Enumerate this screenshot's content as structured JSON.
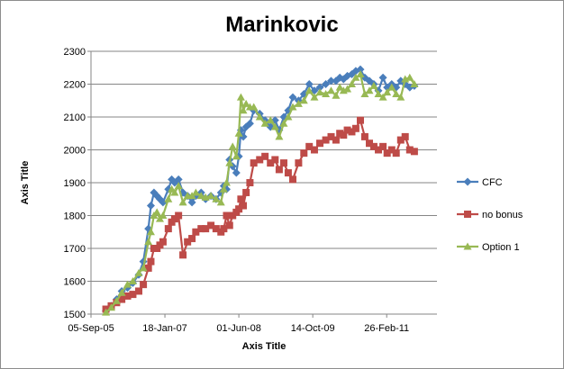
{
  "chart_data": {
    "type": "line",
    "title": "Marinkovic",
    "xlabel": "Axis Title",
    "ylabel": "Axis Title",
    "x_ticks": [
      "05-Sep-05",
      "18-Jan-07",
      "01-Jun-08",
      "14-Oct-09",
      "26-Feb-11"
    ],
    "xlim": [
      "2005-09-05",
      "2012-02-01"
    ],
    "ylim": [
      1500,
      2300
    ],
    "y_ticks": [
      1500,
      1600,
      1700,
      1800,
      1900,
      2000,
      2100,
      2200,
      2300
    ],
    "grid": "horizontal",
    "legend_position": "right",
    "series": [
      {
        "name": "CFC",
        "color": "#4A7EBB",
        "marker": "diamond",
        "x": [
          "2005-12-15",
          "2006-01-20",
          "2006-02-25",
          "2006-04-01",
          "2006-05-10",
          "2006-06-15",
          "2006-07-25",
          "2006-08-25",
          "2006-09-28",
          "2006-10-15",
          "2006-11-05",
          "2006-11-25",
          "2006-12-15",
          "2007-01-05",
          "2007-02-10",
          "2007-03-05",
          "2007-03-25",
          "2007-04-20",
          "2007-05-20",
          "2007-06-20",
          "2007-07-20",
          "2007-08-15",
          "2007-09-20",
          "2007-10-20",
          "2007-11-25",
          "2007-12-30",
          "2008-02-01",
          "2008-02-20",
          "2008-03-10",
          "2008-03-30",
          "2008-04-20",
          "2008-05-15",
          "2008-06-01",
          "2008-06-15",
          "2008-07-01",
          "2008-07-20",
          "2008-08-15",
          "2008-09-10",
          "2008-10-20",
          "2008-11-25",
          "2009-01-01",
          "2009-02-01",
          "2009-03-01",
          "2009-04-01",
          "2009-05-01",
          "2009-06-01",
          "2009-07-10",
          "2009-08-15",
          "2009-09-20",
          "2009-10-25",
          "2009-12-01",
          "2010-01-10",
          "2010-02-15",
          "2010-03-20",
          "2010-04-15",
          "2010-05-10",
          "2010-06-05",
          "2010-07-05",
          "2010-08-01",
          "2010-09-01",
          "2010-10-01",
          "2010-11-01",
          "2010-12-01",
          "2011-01-01",
          "2011-02-01",
          "2011-03-01",
          "2011-04-01",
          "2011-05-01",
          "2011-06-01",
          "2011-07-01",
          "2011-08-01",
          "2011-09-01"
        ],
        "y": [
          1510,
          1525,
          1545,
          1570,
          1580,
          1595,
          1620,
          1660,
          1760,
          1830,
          1870,
          1860,
          1850,
          1840,
          1880,
          1910,
          1900,
          1910,
          1870,
          1860,
          1840,
          1860,
          1870,
          1850,
          1860,
          1850,
          1870,
          1890,
          1880,
          1970,
          1950,
          1930,
          1980,
          2060,
          2040,
          2070,
          2080,
          2120,
          2110,
          2090,
          2070,
          2090,
          2060,
          2100,
          2120,
          2160,
          2150,
          2170,
          2200,
          2180,
          2190,
          2200,
          2210,
          2210,
          2220,
          2215,
          2225,
          2230,
          2240,
          2245,
          2220,
          2210,
          2200,
          2180,
          2220,
          2190,
          2200,
          2190,
          2210,
          2200,
          2190,
          2195
        ]
      },
      {
        "name": "no bonus",
        "color": "#BE4B48",
        "marker": "square",
        "x": [
          "2005-12-15",
          "2006-01-20",
          "2006-02-25",
          "2006-04-01",
          "2006-05-10",
          "2006-06-15",
          "2006-07-25",
          "2006-08-25",
          "2006-09-28",
          "2006-10-15",
          "2006-11-05",
          "2006-11-25",
          "2006-12-15",
          "2007-01-05",
          "2007-02-10",
          "2007-03-05",
          "2007-03-25",
          "2007-04-20",
          "2007-05-20",
          "2007-06-20",
          "2007-07-20",
          "2007-08-15",
          "2007-09-20",
          "2007-10-20",
          "2007-11-25",
          "2007-12-30",
          "2008-02-01",
          "2008-02-20",
          "2008-03-10",
          "2008-03-30",
          "2008-04-20",
          "2008-05-15",
          "2008-06-01",
          "2008-06-15",
          "2008-07-01",
          "2008-07-20",
          "2008-08-15",
          "2008-09-10",
          "2008-10-20",
          "2008-11-25",
          "2009-01-01",
          "2009-02-01",
          "2009-03-01",
          "2009-04-01",
          "2009-05-01",
          "2009-06-01",
          "2009-07-10",
          "2009-08-15",
          "2009-09-20",
          "2009-10-25",
          "2009-12-01",
          "2010-01-10",
          "2010-02-15",
          "2010-03-20",
          "2010-04-15",
          "2010-05-10",
          "2010-06-05",
          "2010-07-05",
          "2010-08-01",
          "2010-09-01",
          "2010-10-01",
          "2010-11-01",
          "2010-12-01",
          "2011-01-01",
          "2011-02-01",
          "2011-03-01",
          "2011-04-01",
          "2011-05-01",
          "2011-06-01",
          "2011-07-01",
          "2011-08-01",
          "2011-09-01"
        ],
        "y": [
          1515,
          1525,
          1535,
          1545,
          1555,
          1560,
          1570,
          1590,
          1640,
          1660,
          1700,
          1700,
          1710,
          1720,
          1760,
          1780,
          1790,
          1800,
          1680,
          1720,
          1730,
          1750,
          1760,
          1760,
          1770,
          1760,
          1750,
          1760,
          1800,
          1770,
          1800,
          1810,
          1820,
          1850,
          1830,
          1870,
          1900,
          1960,
          1970,
          1980,
          1960,
          1970,
          1940,
          1960,
          1930,
          1910,
          1960,
          1990,
          2010,
          2000,
          2020,
          2030,
          2040,
          2030,
          2050,
          2045,
          2060,
          2055,
          2065,
          2090,
          2040,
          2020,
          2010,
          2000,
          2010,
          1990,
          2000,
          1990,
          2030,
          2040,
          2000,
          1995
        ]
      },
      {
        "name": "Option 1",
        "color": "#98B954",
        "marker": "triangle",
        "x": [
          "2005-12-15",
          "2006-01-20",
          "2006-02-25",
          "2006-04-01",
          "2006-05-10",
          "2006-06-15",
          "2006-07-25",
          "2006-08-25",
          "2006-09-28",
          "2006-10-15",
          "2006-11-05",
          "2006-11-25",
          "2006-12-15",
          "2007-01-05",
          "2007-02-10",
          "2007-03-05",
          "2007-03-25",
          "2007-04-20",
          "2007-05-20",
          "2007-06-20",
          "2007-07-20",
          "2007-08-15",
          "2007-09-20",
          "2007-10-20",
          "2007-11-25",
          "2007-12-30",
          "2008-02-01",
          "2008-02-20",
          "2008-03-10",
          "2008-03-30",
          "2008-04-20",
          "2008-05-15",
          "2008-06-01",
          "2008-06-15",
          "2008-07-01",
          "2008-07-20",
          "2008-08-15",
          "2008-09-10",
          "2008-10-20",
          "2008-11-25",
          "2009-01-01",
          "2009-02-01",
          "2009-03-01",
          "2009-04-01",
          "2009-05-01",
          "2009-06-01",
          "2009-07-10",
          "2009-08-15",
          "2009-09-20",
          "2009-10-25",
          "2009-12-01",
          "2010-01-10",
          "2010-02-15",
          "2010-03-20",
          "2010-04-15",
          "2010-05-10",
          "2010-06-05",
          "2010-07-05",
          "2010-08-01",
          "2010-09-01",
          "2010-10-01",
          "2010-11-01",
          "2010-12-01",
          "2011-01-01",
          "2011-02-01",
          "2011-03-01",
          "2011-04-01",
          "2011-05-01",
          "2011-06-01",
          "2011-07-01",
          "2011-08-01",
          "2011-09-01"
        ],
        "y": [
          1505,
          1520,
          1540,
          1565,
          1590,
          1600,
          1625,
          1640,
          1720,
          1750,
          1800,
          1810,
          1790,
          1800,
          1850,
          1880,
          1870,
          1890,
          1840,
          1860,
          1860,
          1870,
          1860,
          1855,
          1860,
          1850,
          1840,
          1880,
          1900,
          1960,
          2010,
          1980,
          2050,
          2160,
          2120,
          2140,
          2130,
          2130,
          2100,
          2080,
          2090,
          2070,
          2040,
          2080,
          2100,
          2130,
          2140,
          2150,
          2180,
          2160,
          2175,
          2170,
          2180,
          2165,
          2190,
          2180,
          2185,
          2200,
          2220,
          2230,
          2170,
          2180,
          2195,
          2170,
          2160,
          2175,
          2190,
          2170,
          2160,
          2215,
          2220,
          2200
        ]
      }
    ]
  }
}
